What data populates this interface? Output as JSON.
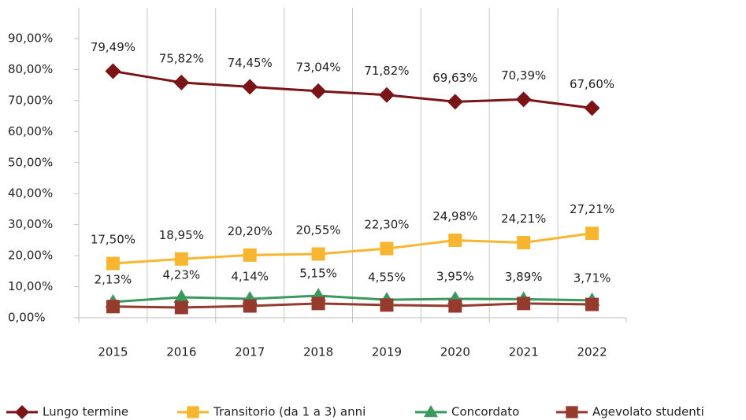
{
  "chart_data": {
    "type": "line",
    "categories": [
      "2015",
      "2016",
      "2017",
      "2018",
      "2019",
      "2020",
      "2021",
      "2022"
    ],
    "series": [
      {
        "name": "Lungo termine",
        "color": "#7b1417",
        "marker": "diamond",
        "values": [
          79.49,
          75.82,
          74.45,
          73.04,
          71.82,
          69.63,
          70.39,
          67.6
        ],
        "value_labels": [
          "79,49%",
          "75,82%",
          "74,45%",
          "73,04%",
          "71,82%",
          "69,63%",
          "70,39%",
          "67,60%"
        ]
      },
      {
        "name": "Transitorio (da 1 a 3) anni",
        "color": "#f8b530",
        "marker": "square",
        "values": [
          17.5,
          18.95,
          20.2,
          20.55,
          22.3,
          24.98,
          24.21,
          27.21
        ],
        "value_labels": [
          "17,50%",
          "18,95%",
          "20,20%",
          "20,55%",
          "22,30%",
          "24,98%",
          "24,21%",
          "27,21%"
        ]
      },
      {
        "name": "Concordato",
        "color": "#3a9a5e",
        "marker": "triangle",
        "values": [
          5.1,
          6.6,
          6.1,
          7.1,
          5.8,
          6.1,
          6.0,
          5.6
        ]
      },
      {
        "name": "Agevolato studenti",
        "color": "#963a2e",
        "marker": "square",
        "values": [
          3.6,
          3.3,
          3.8,
          4.6,
          4.1,
          3.8,
          4.6,
          4.3
        ]
      }
    ],
    "annotations": [
      "2,13%",
      "4,23%",
      "4,14%",
      "5,15%",
      "4,55%",
      "3,95%",
      "3,89%",
      "3,71%"
    ],
    "ylim": [
      0,
      90
    ],
    "yticks": [
      {
        "value": 0,
        "label": "0,00%"
      },
      {
        "value": 10,
        "label": "10,00%"
      },
      {
        "value": 20,
        "label": "20,00%"
      },
      {
        "value": 30,
        "label": "30,00%"
      },
      {
        "value": 40,
        "label": "40,00%"
      },
      {
        "value": 50,
        "label": "50,00%"
      },
      {
        "value": 60,
        "label": "60,00%"
      },
      {
        "value": 70,
        "label": "70,00%"
      },
      {
        "value": 80,
        "label": "80,00%"
      },
      {
        "value": 90,
        "label": "90,00%"
      }
    ],
    "grid": "vertical",
    "legend": "bottom"
  }
}
